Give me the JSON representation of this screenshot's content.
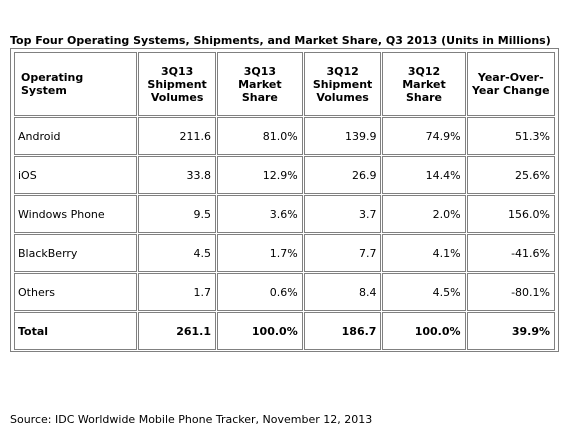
{
  "chart_data": {
    "type": "table",
    "title": "Top Four Operating Systems, Shipments, and Market Share, Q3 2013 (Units in Millions)",
    "columns": [
      "Operating System",
      "3Q13 Shipment Volumes",
      "3Q13 Market Share",
      "3Q12 Shipment Volumes",
      "3Q12 Market Share",
      "Year-Over-Year Change"
    ],
    "rows": [
      [
        "Android",
        "211.6",
        "81.0%",
        "139.9",
        "74.9%",
        "51.3%"
      ],
      [
        "iOS",
        "33.8",
        "12.9%",
        "26.9",
        "14.4%",
        "25.6%"
      ],
      [
        "Windows Phone",
        "9.5",
        "3.6%",
        "3.7",
        "2.0%",
        "156.0%"
      ],
      [
        "BlackBerry",
        "4.5",
        "1.7%",
        "7.7",
        "4.1%",
        "-41.6%"
      ],
      [
        "Others",
        "1.7",
        "0.6%",
        "8.4",
        "4.5%",
        "-80.1%"
      ]
    ],
    "total": [
      "Total",
      "261.1",
      "100.0%",
      "186.7",
      "100.0%",
      "39.9%"
    ],
    "source": "Source: IDC Worldwide Mobile Phone Tracker, November 12, 2013"
  }
}
